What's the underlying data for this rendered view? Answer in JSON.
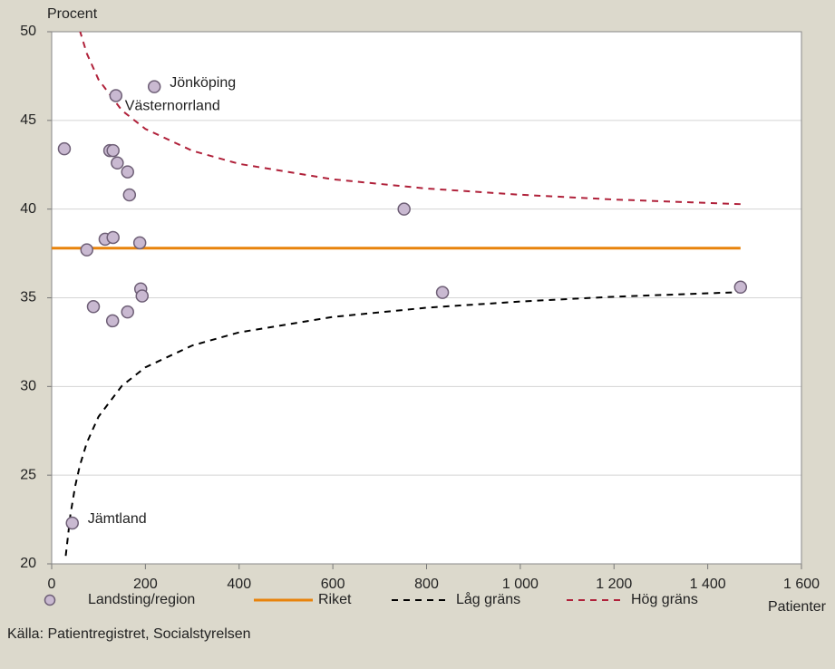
{
  "chart_data": {
    "type": "scatter",
    "y_label": "Procent",
    "x_label": "Patienter",
    "source": "Källa: Patientregistret, Socialstyrelsen",
    "xlim": [
      0,
      1600
    ],
    "ylim": [
      20,
      50
    ],
    "xticks": [
      0,
      200,
      400,
      600,
      800,
      {
        "value": 1000,
        "label": "1 000"
      },
      {
        "value": 1200,
        "label": "1 200"
      },
      {
        "value": 1400,
        "label": "1 400"
      },
      {
        "value": 1600,
        "label": "1 600"
      }
    ],
    "yticks": [
      20,
      25,
      30,
      35,
      40,
      45,
      50
    ],
    "grid": true,
    "legend": "bottom",
    "series": [
      {
        "name": "Landsting/region",
        "style": "marker",
        "color": "#c9b9d1",
        "x": [
          219,
          137,
          27,
          124,
          131,
          140,
          162,
          166,
          752,
          114,
          131,
          188,
          75,
          190,
          193,
          834,
          1470,
          89,
          162,
          130,
          44
        ],
        "values": [
          46.9,
          46.4,
          43.4,
          43.3,
          43.3,
          42.6,
          42.1,
          40.8,
          40.0,
          38.3,
          38.4,
          38.1,
          37.7,
          35.5,
          35.1,
          35.3,
          35.6,
          34.5,
          34.2,
          33.7,
          22.3
        ],
        "point_labels": [
          "Jönköping",
          "Västernorrland",
          null,
          null,
          null,
          null,
          null,
          null,
          null,
          null,
          null,
          null,
          null,
          null,
          null,
          null,
          null,
          null,
          null,
          null,
          "Jämtland"
        ]
      },
      {
        "name": "Riket",
        "style": "solid",
        "color": "#e8830c",
        "x": [
          0,
          1470
        ],
        "values": [
          37.8,
          37.8
        ]
      },
      {
        "name": "Låg gräns",
        "style": "dashed",
        "color": "#000000",
        "x": [
          30,
          40,
          50,
          60,
          75,
          100,
          150,
          200,
          300,
          400,
          600,
          800,
          1000,
          1200,
          1470
        ],
        "values": [
          20.45,
          22.77,
          24.36,
          25.53,
          26.83,
          28.3,
          30.04,
          31.08,
          32.31,
          33.05,
          33.92,
          34.44,
          34.79,
          35.06,
          35.32
        ]
      },
      {
        "name": "Hög gräns",
        "style": "dashed",
        "color": "#b0213a",
        "x": [
          60,
          75,
          100,
          150,
          200,
          300,
          400,
          600,
          800,
          1000,
          1200,
          1470
        ],
        "values": [
          50.07,
          48.77,
          47.3,
          45.56,
          44.52,
          43.29,
          42.55,
          41.68,
          41.16,
          40.81,
          40.54,
          40.28
        ]
      }
    ]
  }
}
